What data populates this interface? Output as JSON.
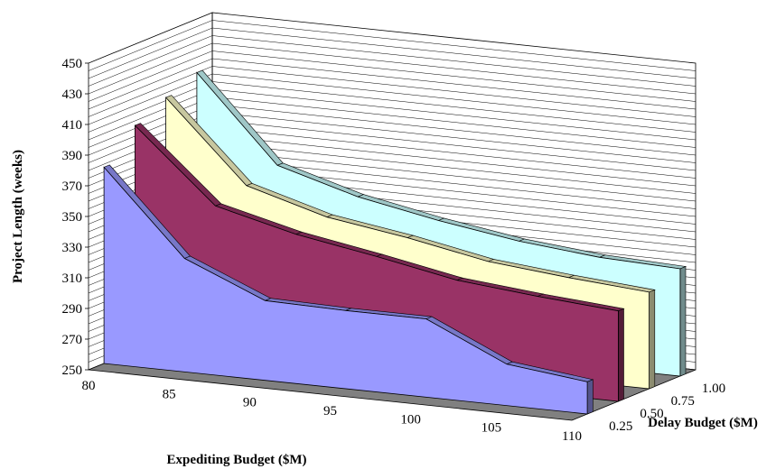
{
  "chart_data": {
    "type": "area",
    "subtype": "3d-area",
    "title": "",
    "ylabel": "Project Length (weeks)",
    "xlabel": "Expediting Budget ($M)",
    "zlabel": "Delay Budget ($M)",
    "ylim": [
      250,
      450
    ],
    "yticks": [
      "250",
      "270",
      "290",
      "310",
      "330",
      "350",
      "370",
      "390",
      "410",
      "430",
      "450"
    ],
    "x": [
      80,
      85,
      90,
      95,
      100,
      105,
      110
    ],
    "xtick_labels": [
      "80",
      "85",
      "90",
      "95",
      "100",
      "105",
      "110"
    ],
    "series": [
      {
        "name": "1.00",
        "label": "1.00",
        "color": "#ccffff",
        "values": [
          415,
          360,
          345,
          335,
          327,
          322,
          320
        ]
      },
      {
        "name": "0.75",
        "label": "0.75",
        "color": "#ffffcc",
        "values": [
          407,
          355,
          340,
          332,
          322,
          317,
          313
        ]
      },
      {
        "name": "0.50",
        "label": "0.50",
        "color": "#993366",
        "values": [
          397,
          350,
          337,
          328,
          318,
          313,
          309
        ]
      },
      {
        "name": "0.25",
        "label": "0.25",
        "color": "#9999ff",
        "values": [
          378,
          324,
          302,
          301,
          301,
          277,
          271
        ]
      }
    ],
    "grid": true,
    "wall_color": "#ffffff",
    "floor_color": "#808080"
  }
}
